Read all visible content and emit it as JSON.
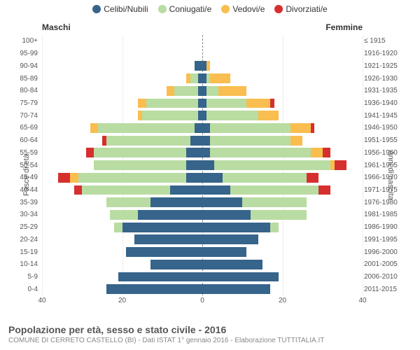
{
  "chart": {
    "type": "population-pyramid-stacked",
    "title": "Popolazione per età, sesso e stato civile - 2016",
    "subtitle": "COMUNE DI CERRETO CASTELLO (BI) - Dati ISTAT 1° gennaio 2016 - Elaborazione TUTTITALIA.IT",
    "legend": [
      {
        "label": "Celibi/Nubili",
        "color": "#36648b"
      },
      {
        "label": "Coniugati/e",
        "color": "#b9dca2"
      },
      {
        "label": "Vedovi/e",
        "color": "#f9be4f"
      },
      {
        "label": "Divorziati/e",
        "color": "#d62f2f"
      }
    ],
    "left_label": "Maschi",
    "right_label": "Femmine",
    "y_left_title": "Fasce di età",
    "y_right_title": "Anni di nascita",
    "xlim": 40,
    "xticks": [
      40,
      20,
      0,
      20,
      40
    ],
    "age_bands": [
      "100+",
      "95-99",
      "90-94",
      "85-89",
      "80-84",
      "75-79",
      "70-74",
      "65-69",
      "60-64",
      "55-59",
      "50-54",
      "45-49",
      "40-44",
      "35-39",
      "30-34",
      "25-29",
      "20-24",
      "15-19",
      "10-14",
      "5-9",
      "0-4"
    ],
    "birth_years": [
      "≤ 1915",
      "1916-1920",
      "1921-1925",
      "1926-1930",
      "1931-1935",
      "1936-1940",
      "1941-1945",
      "1946-1950",
      "1951-1955",
      "1956-1960",
      "1961-1965",
      "1966-1970",
      "1971-1975",
      "1976-1980",
      "1981-1985",
      "1986-1990",
      "1991-1995",
      "1996-2000",
      "2001-2005",
      "2006-2010",
      "2011-2015"
    ],
    "rows": [
      {
        "m": [
          0,
          0,
          0,
          0
        ],
        "f": [
          0,
          0,
          0,
          0
        ]
      },
      {
        "m": [
          0,
          0,
          0,
          0
        ],
        "f": [
          0,
          0,
          0,
          0
        ]
      },
      {
        "m": [
          2,
          0,
          0,
          0
        ],
        "f": [
          1,
          0,
          1,
          0
        ]
      },
      {
        "m": [
          1,
          2,
          1,
          0
        ],
        "f": [
          1,
          1,
          5,
          0
        ]
      },
      {
        "m": [
          1,
          6,
          2,
          0
        ],
        "f": [
          1,
          3,
          7,
          0
        ]
      },
      {
        "m": [
          1,
          13,
          2,
          0
        ],
        "f": [
          1,
          10,
          6,
          1
        ]
      },
      {
        "m": [
          1,
          14,
          1,
          0
        ],
        "f": [
          1,
          13,
          5,
          0
        ]
      },
      {
        "m": [
          2,
          24,
          2,
          0
        ],
        "f": [
          2,
          20,
          5,
          1
        ]
      },
      {
        "m": [
          3,
          21,
          0,
          1
        ],
        "f": [
          2,
          20,
          3,
          0
        ]
      },
      {
        "m": [
          4,
          23,
          0,
          2
        ],
        "f": [
          2,
          25,
          3,
          2
        ]
      },
      {
        "m": [
          4,
          23,
          0,
          0
        ],
        "f": [
          3,
          29,
          1,
          3
        ]
      },
      {
        "m": [
          4,
          27,
          2,
          3
        ],
        "f": [
          5,
          21,
          0,
          3
        ]
      },
      {
        "m": [
          8,
          22,
          0,
          2
        ],
        "f": [
          7,
          22,
          0,
          3
        ]
      },
      {
        "m": [
          13,
          11,
          0,
          0
        ],
        "f": [
          10,
          16,
          0,
          0
        ]
      },
      {
        "m": [
          16,
          7,
          0,
          0
        ],
        "f": [
          12,
          14,
          0,
          0
        ]
      },
      {
        "m": [
          20,
          2,
          0,
          0
        ],
        "f": [
          17,
          2,
          0,
          0
        ]
      },
      {
        "m": [
          17,
          0,
          0,
          0
        ],
        "f": [
          14,
          0,
          0,
          0
        ]
      },
      {
        "m": [
          19,
          0,
          0,
          0
        ],
        "f": [
          11,
          0,
          0,
          0
        ]
      },
      {
        "m": [
          13,
          0,
          0,
          0
        ],
        "f": [
          15,
          0,
          0,
          0
        ]
      },
      {
        "m": [
          21,
          0,
          0,
          0
        ],
        "f": [
          19,
          0,
          0,
          0
        ]
      },
      {
        "m": [
          24,
          0,
          0,
          0
        ],
        "f": [
          17,
          0,
          0,
          0
        ]
      }
    ],
    "colors": {
      "celibi": "#36648b",
      "coniugati": "#b9dca2",
      "vedovi": "#f9be4f",
      "divorziati": "#d62f2f",
      "grid": "#eeeeee",
      "center_line": "#888888",
      "text": "#555555",
      "bg": "#ffffff"
    },
    "font_sizes": {
      "legend": 12,
      "axis_label": 10,
      "axis_title": 11,
      "title": 14,
      "subtitle": 10
    }
  }
}
